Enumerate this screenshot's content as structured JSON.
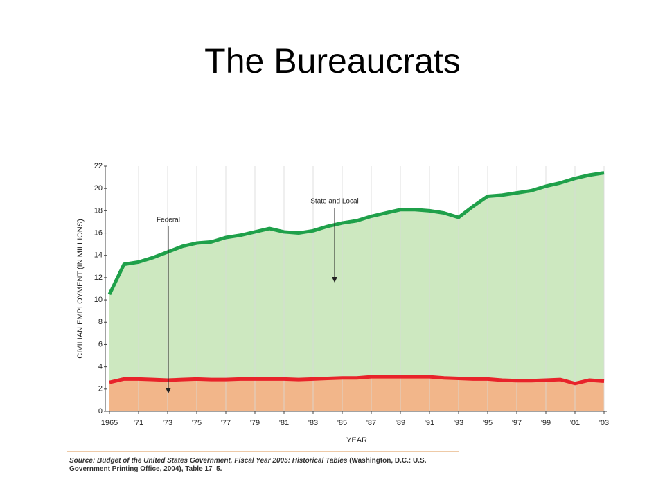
{
  "chart_data": {
    "type": "stacked-area",
    "title": "The Bureaucrats",
    "y_label": "CIVILIAN EMPLOYMENT (IN MILLIONS)",
    "x_label": "YEAR",
    "categories": [
      "1965",
      null,
      "'71",
      null,
      "'73",
      null,
      "'75",
      null,
      "'77",
      null,
      "'79",
      null,
      "'81",
      null,
      "'83",
      null,
      "'85",
      null,
      "'87",
      null,
      "'89",
      null,
      "'91",
      null,
      "'93",
      null,
      "'95",
      null,
      "'97",
      null,
      "'99",
      null,
      "'01",
      null,
      "'03"
    ],
    "series": [
      {
        "name": "Federal",
        "color": "#e8232a",
        "fill": "#f2b68a",
        "values": [
          2.6,
          2.9,
          2.9,
          2.85,
          2.8,
          2.85,
          2.9,
          2.85,
          2.85,
          2.9,
          2.9,
          2.9,
          2.9,
          2.85,
          2.9,
          2.95,
          3.0,
          3.0,
          3.1,
          3.1,
          3.1,
          3.1,
          3.1,
          3.0,
          2.95,
          2.9,
          2.9,
          2.8,
          2.75,
          2.75,
          2.8,
          2.85,
          2.5,
          2.8,
          2.7
        ]
      },
      {
        "name": "State and Local",
        "color": "#1fa04a",
        "fill": "#cde8c0",
        "values": [
          7.9,
          10.3,
          10.5,
          10.95,
          11.5,
          11.95,
          12.2,
          12.35,
          12.75,
          12.9,
          13.2,
          13.5,
          13.2,
          13.15,
          13.3,
          13.65,
          13.9,
          14.1,
          14.4,
          14.7,
          15.0,
          15.0,
          14.9,
          14.8,
          14.45,
          15.5,
          16.4,
          16.6,
          16.85,
          17.05,
          17.4,
          17.65,
          18.4,
          18.4,
          18.7
        ]
      }
    ],
    "ylim": [
      0,
      22
    ],
    "yticks": [
      0,
      2,
      4,
      6,
      8,
      10,
      12,
      14,
      16,
      18,
      20,
      22
    ],
    "grid": true,
    "source": {
      "italic": "Source: Budget of the United States Government, Fiscal Year 2005: Historical Tables",
      "text": " (Washington, D.C.: U.S. Government Printing Office, 2004), Table 17–5."
    }
  }
}
